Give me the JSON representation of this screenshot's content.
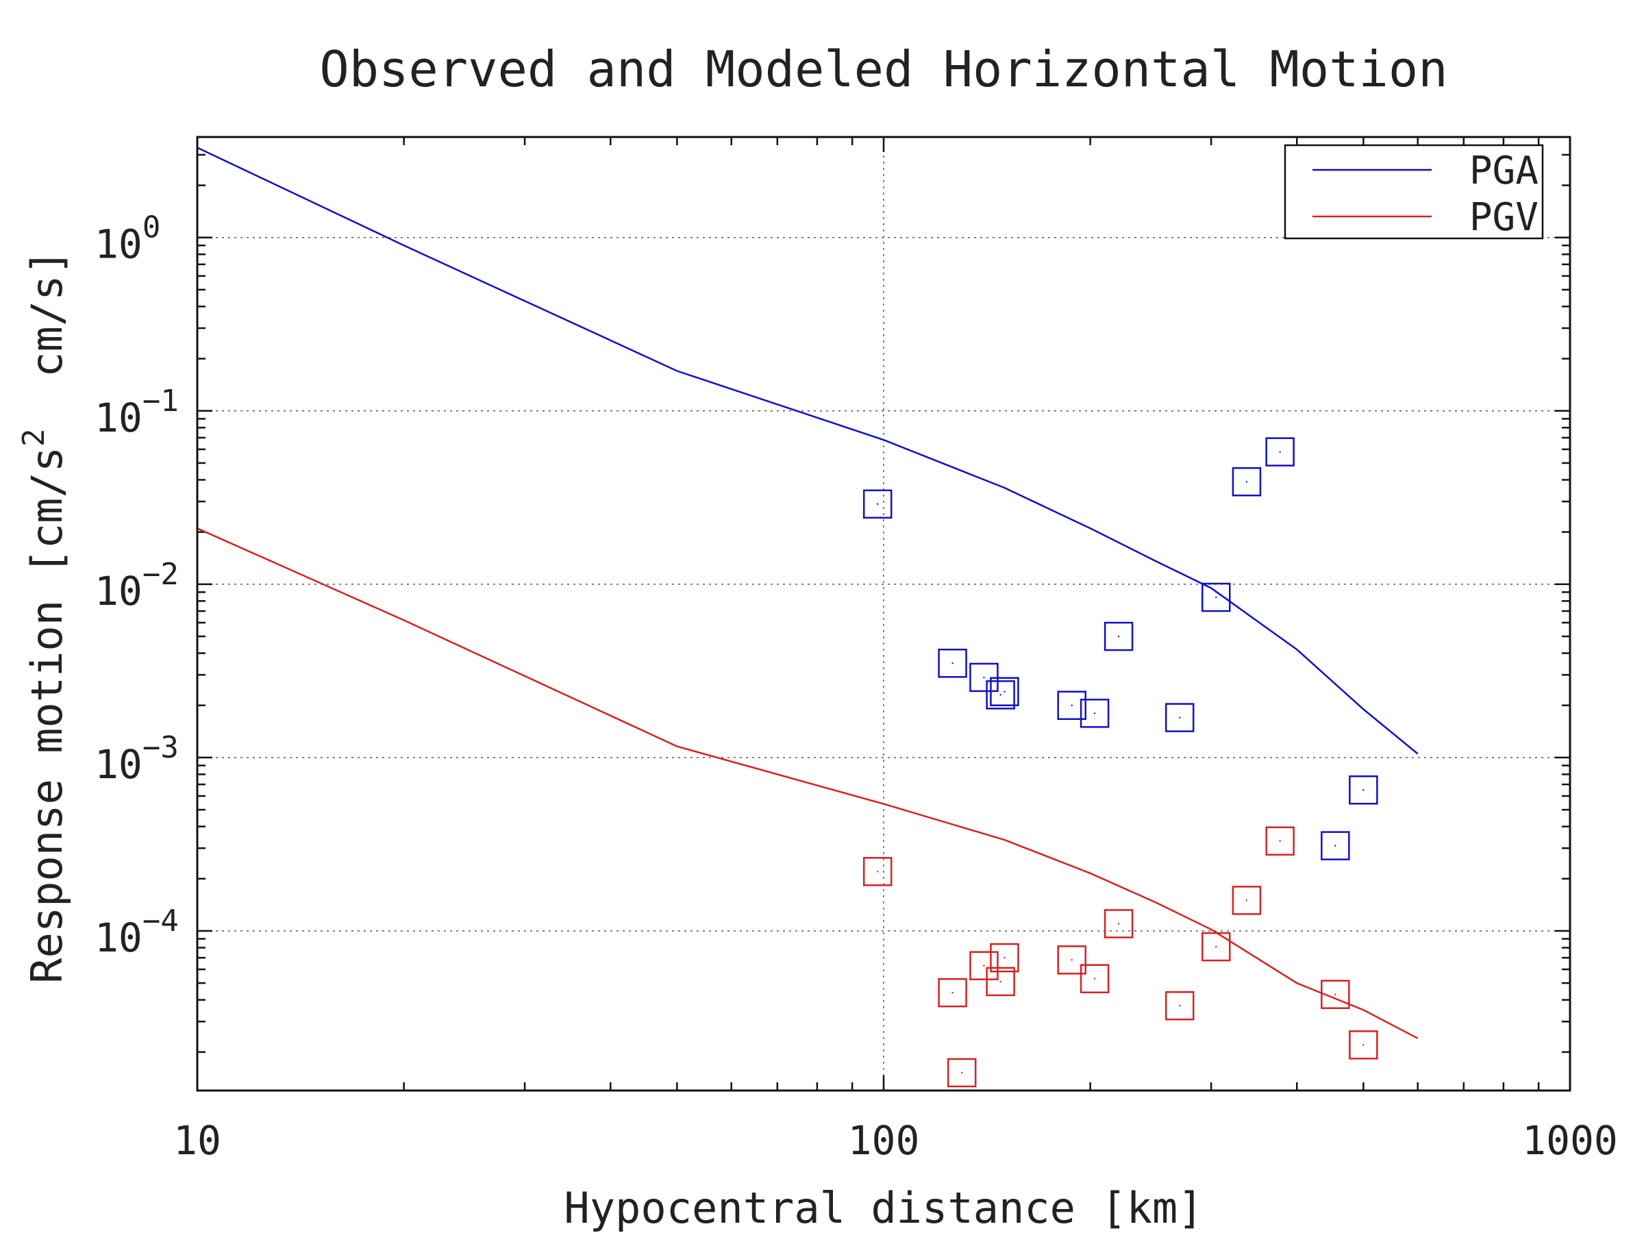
{
  "chart_data": {
    "type": "scatter",
    "title": "Observed and Modeled Horizontal Motion",
    "xlabel": "Hypocentral distance [km]",
    "ylabel": "Response motion [cm/s² cm/s]",
    "ylabel_parts": {
      "pre": "Response motion [cm/s",
      "sup": "2",
      "post": "  cm/s]"
    },
    "x_scale": "log",
    "y_scale": "log",
    "xlim": [
      10,
      1000
    ],
    "ylim": [
      1.2e-05,
      3.8
    ],
    "x_ticks": [
      {
        "value": 10,
        "label": "10"
      },
      {
        "value": 100,
        "label": "100"
      },
      {
        "value": 1000,
        "label": "1000"
      }
    ],
    "y_ticks": [
      {
        "value": 1,
        "base": "10",
        "exp": "0"
      },
      {
        "value": 0.1,
        "base": "10",
        "exp": "−1"
      },
      {
        "value": 0.01,
        "base": "10",
        "exp": "−2"
      },
      {
        "value": 0.001,
        "base": "10",
        "exp": "−3"
      },
      {
        "value": 0.0001,
        "base": "10",
        "exp": "−4"
      }
    ],
    "grid": true,
    "legend_position": "top-right",
    "series": [
      {
        "name": "PGA",
        "color": "#1010c8",
        "model": {
          "x": [
            10,
            20,
            50,
            100,
            150,
            200,
            250,
            300,
            400,
            500,
            600
          ],
          "y": [
            3.3,
            0.9,
            0.17,
            0.068,
            0.036,
            0.021,
            0.0135,
            0.0095,
            0.0042,
            0.0019,
            0.00105
          ]
        },
        "observed": {
          "x": [
            98,
            126,
            140,
            148,
            150,
            188,
            203,
            220,
            270,
            305,
            338,
            378,
            455,
            500
          ],
          "y": [
            0.029,
            0.0035,
            0.0029,
            0.0023,
            0.0024,
            0.002,
            0.0018,
            0.005,
            0.0017,
            0.0084,
            0.039,
            0.058,
            0.00031,
            0.00065
          ]
        }
      },
      {
        "name": "PGV",
        "color": "#d82020",
        "model": {
          "x": [
            10,
            20,
            50,
            100,
            150,
            200,
            250,
            300,
            400,
            500,
            600
          ],
          "y": [
            0.021,
            0.0062,
            0.00116,
            0.00054,
            0.000335,
            0.000215,
            0.000145,
            0.000102,
            5e-05,
            3.5e-05,
            2.4e-05
          ]
        },
        "observed": {
          "x": [
            98,
            126,
            130,
            140,
            148,
            150,
            188,
            203,
            220,
            270,
            305,
            338,
            378,
            455,
            500
          ],
          "y": [
            0.00022,
            4.4e-05,
            1.52e-05,
            6.3e-05,
            5.1e-05,
            7e-05,
            6.8e-05,
            5.3e-05,
            0.00011,
            3.7e-05,
            8.1e-05,
            0.00015,
            0.00033,
            4.3e-05,
            2.2e-05
          ]
        }
      }
    ]
  }
}
